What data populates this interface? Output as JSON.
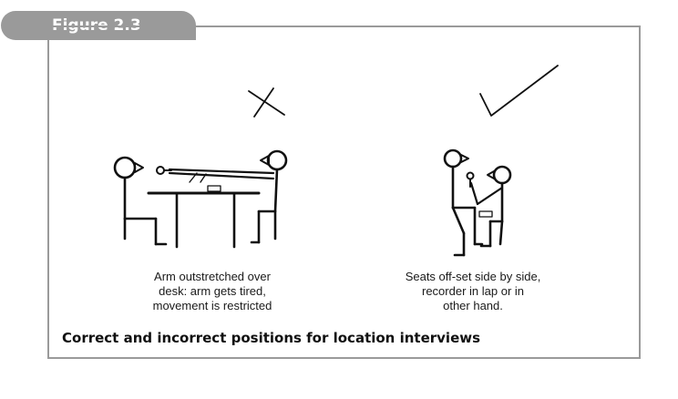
{
  "figure_label": "Figure 2.3",
  "left_panel": {
    "mark_icon": "cross-icon",
    "caption": "Arm outstretched over\ndesk: arm gets tired,\nmovement is restricted"
  },
  "right_panel": {
    "mark_icon": "check-icon",
    "caption": "Seats off-set side by side,\nrecorder in lap or in\nother hand."
  },
  "footer_caption": "Correct and incorrect positions for location interviews",
  "colors": {
    "tab": "#9a9a9a",
    "frame": "#9a9a9a",
    "ink": "#111111"
  }
}
